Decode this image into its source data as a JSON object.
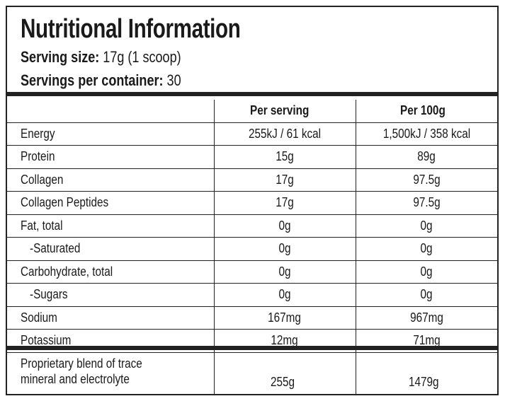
{
  "title": "Nutritional Information",
  "serving_size_label": "Serving size:",
  "serving_size_value": "17g (1 scoop)",
  "servings_label": "Servings per container:",
  "servings_value": "30",
  "columns": [
    "",
    "Per serving",
    "Per 100g"
  ],
  "rows": [
    {
      "name": "Energy",
      "per_serving": "255kJ / 61 kcal",
      "per_100g": "1,500kJ / 358 kcal"
    },
    {
      "name": "Protein",
      "per_serving": "15g",
      "per_100g": "89g"
    },
    {
      "name": "Collagen",
      "per_serving": "17g",
      "per_100g": "97.5g"
    },
    {
      "name": "Collagen Peptides",
      "per_serving": "17g",
      "per_100g": "97.5g"
    },
    {
      "name": "Fat, total",
      "per_serving": "0g",
      "per_100g": "0g"
    },
    {
      "name": "-Saturated",
      "per_serving": "0g",
      "per_100g": "0g"
    },
    {
      "name": "Carbohydrate, total",
      "per_serving": "0g",
      "per_100g": "0g"
    },
    {
      "name": "-Sugars",
      "per_serving": "0g",
      "per_100g": "0g"
    },
    {
      "name": "Sodium",
      "per_serving": "167mg",
      "per_100g": "967mg"
    },
    {
      "name": "Potassium",
      "per_serving": "12mg",
      "per_100g": "71mg"
    }
  ],
  "blend": {
    "line1": "Proprietary blend of trace",
    "line2": "mineral and electrolyte",
    "per_serving": "255g",
    "per_100g": "1479g"
  }
}
